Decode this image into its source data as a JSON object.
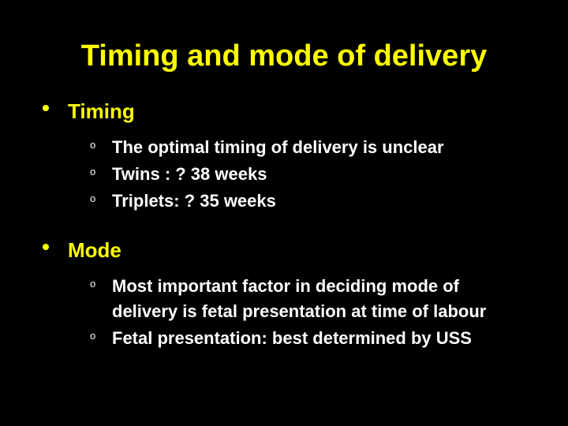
{
  "title": "Timing and mode of delivery",
  "colors": {
    "background": "#000000",
    "title_color": "#ffff00",
    "level1_color": "#ffff00",
    "level2_color": "#ffffff",
    "bullet_dot_color": "#ffff00"
  },
  "typography": {
    "title_fontsize": 38,
    "level1_fontsize": 26,
    "level2_fontsize": 22,
    "font_family": "Arial",
    "font_weight": "bold"
  },
  "sections": [
    {
      "label": "Timing",
      "items": [
        "The optimal timing of delivery is unclear",
        "Twins   : ? 38 weeks",
        "Triplets: ? 35 weeks"
      ]
    },
    {
      "label": "Mode",
      "items": [
        "Most important factor in deciding mode of delivery is fetal presentation at time of labour",
        "Fetal presentation: best determined by USS"
      ]
    }
  ],
  "sub_bullet_marker": "o"
}
